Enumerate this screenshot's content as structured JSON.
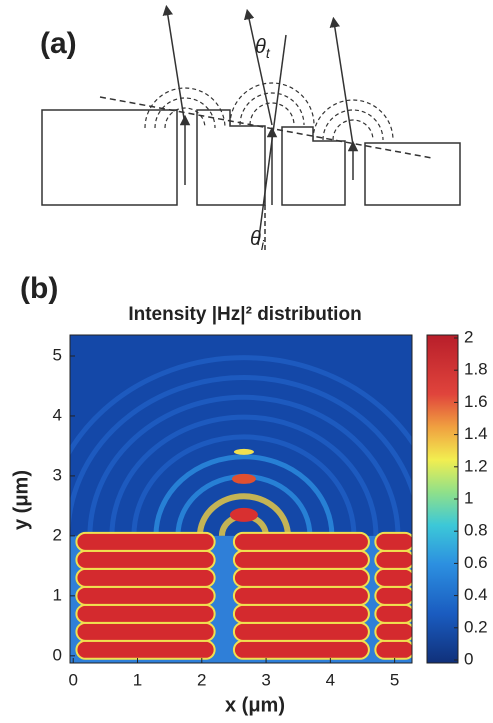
{
  "panel_a": {
    "label": "(a)",
    "theta_t": {
      "symbol": "θ",
      "subscript": "t"
    },
    "theta_i": {
      "symbol": "θ",
      "subscript": "i"
    }
  },
  "chart_data": {
    "type": "heatmap",
    "panel_label": "(b)",
    "title": "Intensity |Hz|² distribution",
    "xlabel": "x (μm)",
    "ylabel": "y (μm)",
    "xlim": [
      -0.05,
      5.27
    ],
    "xticks": [
      0,
      1,
      2,
      3,
      4,
      5
    ],
    "ylim": [
      -0.12,
      5.35
    ],
    "yticks": [
      0,
      1,
      2,
      3,
      4,
      5
    ],
    "colorbar": {
      "lim": [
        0,
        2
      ],
      "ticks": [
        0,
        0.2,
        0.4,
        0.6,
        0.8,
        1,
        1.2,
        1.4,
        1.6,
        1.8,
        2
      ]
    }
  }
}
